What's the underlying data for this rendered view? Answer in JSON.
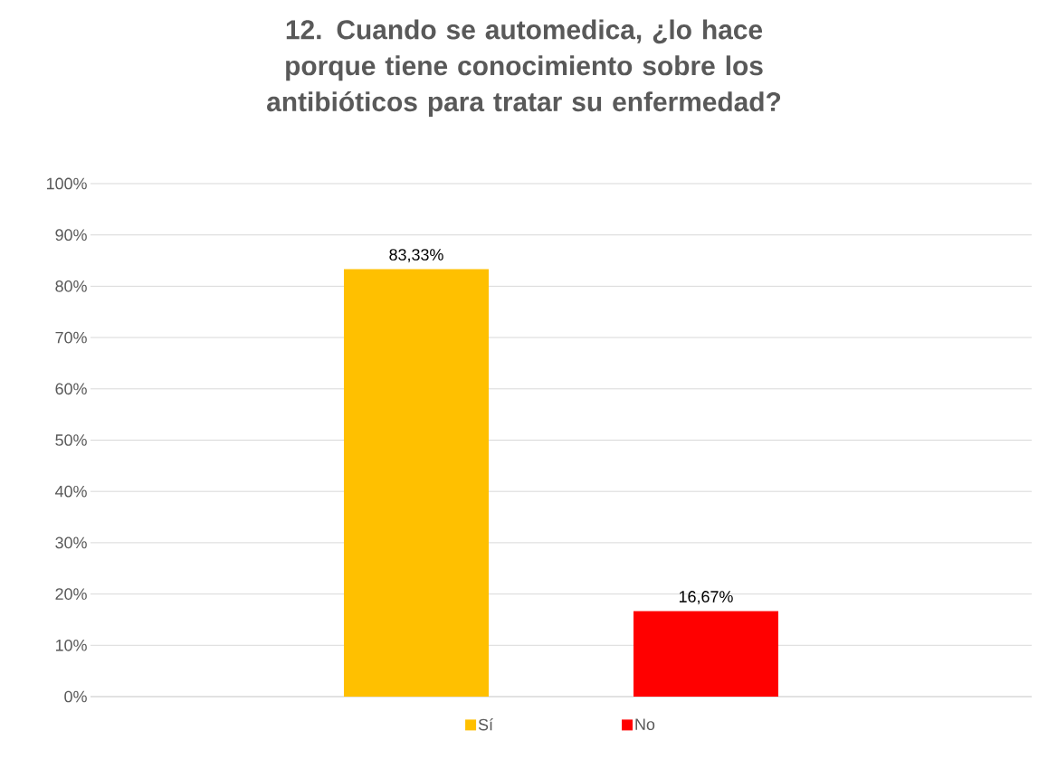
{
  "chart_data": {
    "type": "bar",
    "title": "12. Cuando se automedica, ¿lo hace porque tiene conocimiento sobre los antibióticos para tratar su enfermedad?",
    "categories": [
      null
    ],
    "series": [
      {
        "name": "Sí",
        "color": "#ffc000",
        "values": [
          83.33
        ],
        "value_labels": [
          "83,33%"
        ]
      },
      {
        "name": "No",
        "color": "#ff0000",
        "values": [
          16.67
        ],
        "value_labels": [
          "16,67%"
        ]
      }
    ],
    "ylim": [
      0,
      100
    ],
    "yticks": [
      {
        "value": 0,
        "label": "0%"
      },
      {
        "value": 10,
        "label": "10%"
      },
      {
        "value": 20,
        "label": "20%"
      },
      {
        "value": 30,
        "label": "30%"
      },
      {
        "value": 40,
        "label": "40%"
      },
      {
        "value": 50,
        "label": "50%"
      },
      {
        "value": 60,
        "label": "60%"
      },
      {
        "value": 70,
        "label": "70%"
      },
      {
        "value": 80,
        "label": "80%"
      },
      {
        "value": 90,
        "label": "90%"
      },
      {
        "value": 100,
        "label": "100%"
      }
    ],
    "grid": "y",
    "legend": "bottom"
  }
}
